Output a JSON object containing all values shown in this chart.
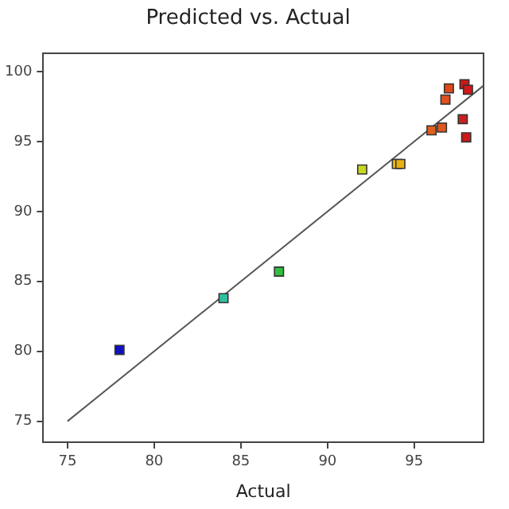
{
  "chart_data": {
    "type": "scatter",
    "title": "Predicted vs. Actual",
    "xlabel": "Actual",
    "xlim": [
      73.6,
      99
    ],
    "xticks": [
      75,
      80,
      85,
      90,
      95
    ],
    "ylim": [
      73.5,
      101.3
    ],
    "yticks": [
      75,
      80,
      85,
      90,
      95,
      100
    ],
    "grid": false,
    "legend": false,
    "marker": "square",
    "series": [
      {
        "x": [
          78,
          84,
          87.2,
          92,
          94,
          94.2,
          96,
          96.6,
          96.8,
          97,
          97.9,
          98.1,
          97.8,
          98
        ],
        "values": [
          80.1,
          83.8,
          85.7,
          93,
          93.4,
          93.4,
          95.8,
          96,
          98,
          98.8,
          99.1,
          98.7,
          96.6,
          95.3
        ],
        "colors": [
          "#1010c0",
          "#30c0a0",
          "#30c040",
          "#c8d820",
          "#f0c010",
          "#e8b010",
          "#e06020",
          "#e05820",
          "#e05020",
          "#e04818",
          "#c81818",
          "#d01818",
          "#c82020",
          "#d01818"
        ]
      },
      {
        "type": "line",
        "marker": "none",
        "line_style": "solid",
        "color": "#555555",
        "x": [
          75,
          99
        ],
        "values": [
          75,
          99
        ]
      }
    ]
  }
}
